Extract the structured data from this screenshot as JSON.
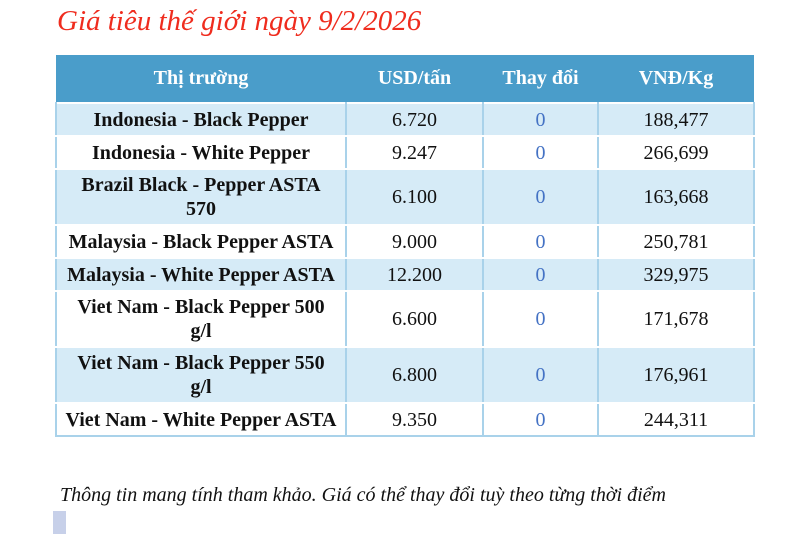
{
  "title": "Giá tiêu thế giới ngày 9/2/2026",
  "table": {
    "headers": [
      "Thị trường",
      "USD/tấn",
      "Thay đổi",
      "VNĐ/Kg"
    ],
    "rows": [
      {
        "market": "Indonesia - Black Pepper",
        "usd": "6.720",
        "change": "0",
        "vnd": "188,477"
      },
      {
        "market": "Indonesia - White Pepper",
        "usd": "9.247",
        "change": "0",
        "vnd": "266,699"
      },
      {
        "market": "Brazil Black - Pepper ASTA 570",
        "usd": "6.100",
        "change": "0",
        "vnd": "163,668"
      },
      {
        "market": "Malaysia - Black Pepper ASTA",
        "usd": "9.000",
        "change": "0",
        "vnd": "250,781"
      },
      {
        "market": "Malaysia - White Pepper ASTA",
        "usd": "12.200",
        "change": "0",
        "vnd": "329,975"
      },
      {
        "market": "Viet Nam - Black Pepper 500 g/l",
        "usd": "6.600",
        "change": "0",
        "vnd": "171,678"
      },
      {
        "market": "Viet Nam - Black Pepper 550 g/l",
        "usd": "6.800",
        "change": "0",
        "vnd": "176,961"
      },
      {
        "market": "Viet Nam - White Pepper ASTA",
        "usd": "9.350",
        "change": "0",
        "vnd": "244,311"
      }
    ]
  },
  "footer_note": "Thông tin mang tính tham khảo. Giá có thể thay đổi tuỳ theo từng thời điểm",
  "colors": {
    "header_bg": "#4a9dca",
    "row_alt_bg": "#d6ebf7",
    "border": "#a9d2ea",
    "change_value": "#4472c4",
    "title": "#ef2c1e",
    "text": "#111111",
    "artifact": "#c7d0e9"
  }
}
